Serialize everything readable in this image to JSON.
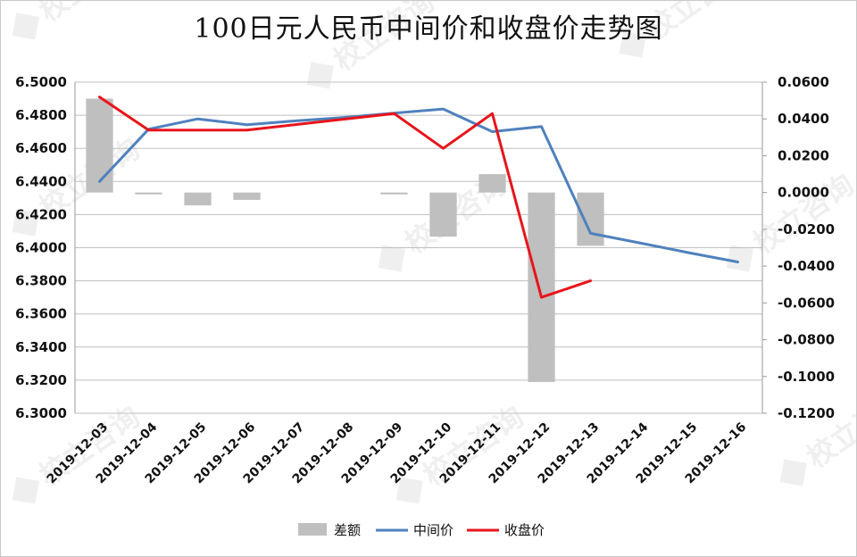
{
  "chart_data": {
    "type": "bar",
    "title": "100日元人民币中间价和收盘价走势图",
    "categories": [
      "2019-12-03",
      "2019-12-04",
      "2019-12-05",
      "2019-12-06",
      "2019-12-07",
      "2019-12-08",
      "2019-12-09",
      "2019-12-10",
      "2019-12-11",
      "2019-12-12",
      "2019-12-13",
      "2019-12-14",
      "2019-12-15",
      "2019-12-16"
    ],
    "left_axis": {
      "ylim": [
        6.3,
        6.5
      ],
      "ticks": [
        "6.3000",
        "6.3200",
        "6.3400",
        "6.3600",
        "6.3800",
        "6.4000",
        "6.4200",
        "6.4400",
        "6.4600",
        "6.4800",
        "6.5000"
      ]
    },
    "right_axis": {
      "ylim": [
        -0.12,
        0.06
      ],
      "ticks": [
        "-0.1200",
        "-0.1000",
        "-0.0800",
        "-0.0600",
        "-0.0400",
        "-0.0200",
        "0.0000",
        "0.0200",
        "0.0400",
        "0.0600"
      ]
    },
    "grid": true,
    "legend_position": "bottom",
    "series": [
      {
        "name": "差额",
        "kind": "bar",
        "axis": "right",
        "color": "#bfbfbf",
        "values": [
          0.051,
          -0.001,
          -0.007,
          -0.004,
          null,
          null,
          -0.001,
          -0.024,
          0.01,
          -0.103,
          -0.029,
          null,
          null,
          null
        ]
      },
      {
        "name": "中间价",
        "kind": "line",
        "axis": "left",
        "color": "#4f81bd",
        "values": [
          6.44,
          6.4716,
          6.4778,
          6.4743,
          6.4766,
          6.4787,
          6.4813,
          6.4838,
          6.4701,
          6.4732,
          6.4087,
          6.4029,
          6.397,
          6.3914
        ]
      },
      {
        "name": "收盘价",
        "kind": "line",
        "axis": "left",
        "color": "#e8141b",
        "values": [
          6.491,
          6.471,
          6.471,
          6.471,
          null,
          null,
          6.481,
          6.46,
          6.481,
          6.37,
          6.38,
          null,
          null,
          null
        ]
      }
    ]
  },
  "watermark": {
    "text": "校立咨询"
  }
}
